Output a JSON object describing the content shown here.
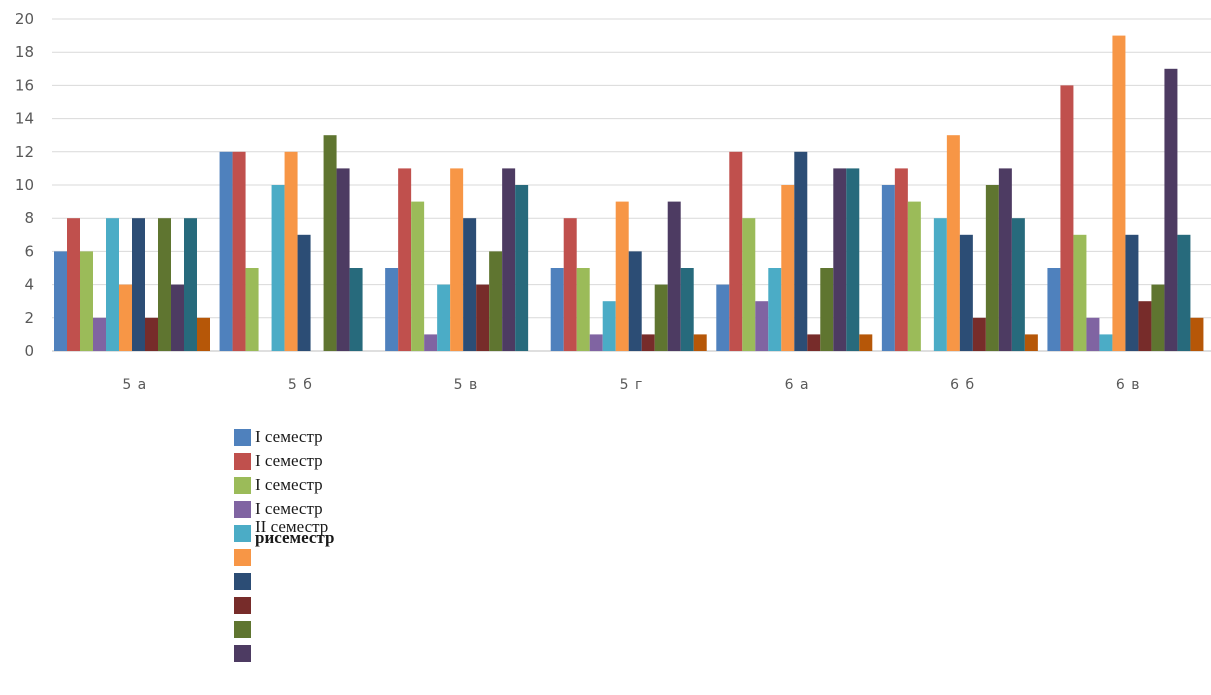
{
  "chart_data": {
    "type": "bar",
    "categories": [
      "5 а",
      "5 б",
      "5 в",
      "5 г",
      "6 а",
      "6 б",
      "6 в"
    ],
    "ylim": [
      0,
      20
    ],
    "yticks": [
      0,
      2,
      4,
      6,
      8,
      10,
      12,
      14,
      16,
      18,
      20
    ],
    "grid": true,
    "legend_position": "bottom-left",
    "series": [
      {
        "values": [
          6,
          12,
          5,
          5,
          4,
          10,
          5
        ],
        "color": "#4F81BD"
      },
      {
        "values": [
          8,
          12,
          11,
          8,
          12,
          11,
          16
        ],
        "color": "#C0504D"
      },
      {
        "values": [
          6,
          5,
          9,
          5,
          8,
          9,
          7
        ],
        "color": "#9BBB59"
      },
      {
        "values": [
          2,
          0,
          1,
          1,
          3,
          0,
          2
        ],
        "color": "#8064A2"
      },
      {
        "values": [
          8,
          10,
          4,
          3,
          5,
          8,
          1
        ],
        "color": "#4BACC6"
      },
      {
        "values": [
          4,
          12,
          11,
          9,
          10,
          13,
          19
        ],
        "color": "#F79646"
      },
      {
        "values": [
          8,
          7,
          8,
          6,
          12,
          7,
          7
        ],
        "color": "#2C4D75"
      },
      {
        "values": [
          2,
          0,
          4,
          1,
          1,
          2,
          3
        ],
        "color": "#772C2A"
      },
      {
        "values": [
          8,
          13,
          6,
          4,
          5,
          10,
          4
        ],
        "color": "#5F7530"
      },
      {
        "values": [
          4,
          11,
          11,
          9,
          11,
          11,
          17
        ],
        "color": "#4D3B62"
      },
      {
        "values": [
          8,
          5,
          10,
          5,
          11,
          8,
          7
        ],
        "color": "#276A7C"
      },
      {
        "values": [
          2,
          0,
          0,
          1,
          1,
          1,
          2
        ],
        "color": "#B65708"
      }
    ]
  },
  "legend": {
    "items": [
      {
        "label": "I семестр",
        "color": "#4F81BD"
      },
      {
        "label": "I семестр",
        "color": "#C0504D"
      },
      {
        "label": "I семестр",
        "color": "#9BBB59"
      },
      {
        "label": "I семестр",
        "color": "#8064A2"
      },
      {
        "label": "II семестр",
        "overlap_label": "рисеместр",
        "color": "#4BACC6"
      },
      {
        "label": "",
        "color": "#F79646"
      },
      {
        "label": "",
        "color": "#2C4D75"
      },
      {
        "label": "",
        "color": "#772C2A"
      },
      {
        "label": "",
        "color": "#5F7530"
      },
      {
        "label": "",
        "color": "#4D3B62"
      }
    ]
  }
}
